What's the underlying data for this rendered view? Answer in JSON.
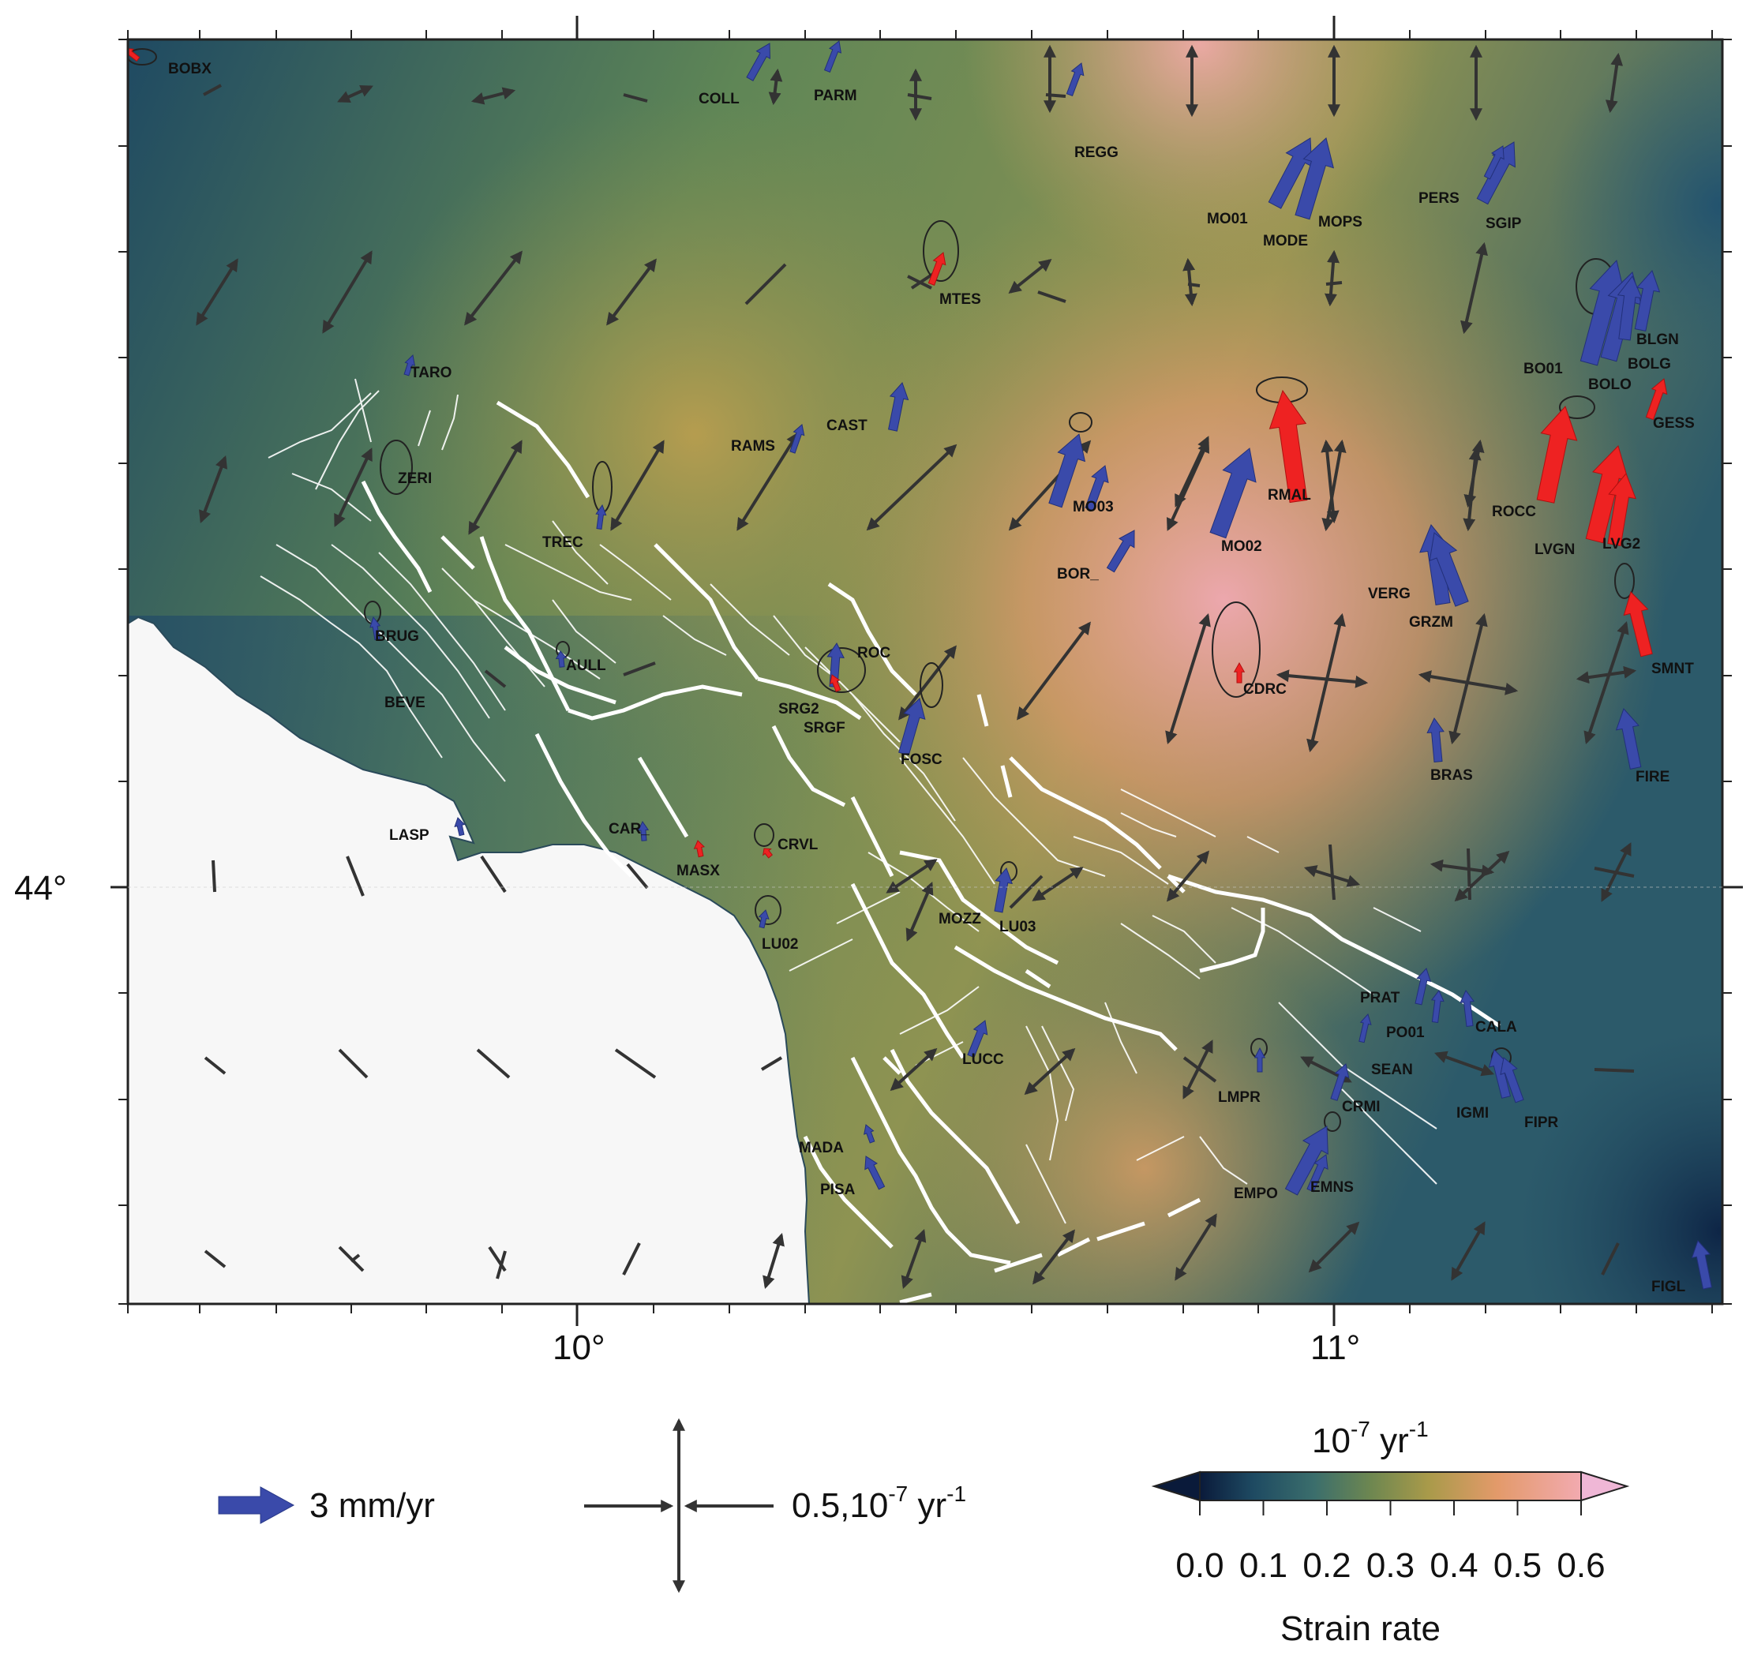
{
  "map": {
    "lat_label": "44°",
    "lon_labels": [
      "10°",
      "11°"
    ],
    "colors": {
      "sea": "#f7f7f7",
      "fault": "#ffffff",
      "gps_arrow": "#3a4aaa",
      "gps_arrow_red": "#ee2222",
      "strain_arrow": "#333333"
    }
  },
  "stations": [
    {
      "label": "BOBX"
    },
    {
      "label": "COLL"
    },
    {
      "label": "PARM"
    },
    {
      "label": "REGG"
    },
    {
      "label": "MO01"
    },
    {
      "label": "MODE"
    },
    {
      "label": "MOPS"
    },
    {
      "label": "PERS"
    },
    {
      "label": "SGIP"
    },
    {
      "label": "MTES"
    },
    {
      "label": "BLGN"
    },
    {
      "label": "BO01"
    },
    {
      "label": "BOLG"
    },
    {
      "label": "BOLO"
    },
    {
      "label": "GESS"
    },
    {
      "label": "TARO"
    },
    {
      "label": "CAST"
    },
    {
      "label": "RAMS"
    },
    {
      "label": "ZERI"
    },
    {
      "label": "RMAL"
    },
    {
      "label": "MO03"
    },
    {
      "label": "ROCC"
    },
    {
      "label": "LVGN"
    },
    {
      "label": "LVG2"
    },
    {
      "label": "TREC"
    },
    {
      "label": "MO02"
    },
    {
      "label": "BOR_"
    },
    {
      "label": "VERG"
    },
    {
      "label": "GRZM"
    },
    {
      "label": "BRUG"
    },
    {
      "label": "ROC"
    },
    {
      "label": "AULL"
    },
    {
      "label": "CDRC"
    },
    {
      "label": "SMNT"
    },
    {
      "label": "BEVE"
    },
    {
      "label": "SRG2"
    },
    {
      "label": "SRGF"
    },
    {
      "label": "FOSC"
    },
    {
      "label": "BRAS"
    },
    {
      "label": "FIRE"
    },
    {
      "label": "LASP"
    },
    {
      "label": "CAR_"
    },
    {
      "label": "CRVL"
    },
    {
      "label": "MASX"
    },
    {
      "label": "MOZZ"
    },
    {
      "label": "LU03"
    },
    {
      "label": "LU02"
    },
    {
      "label": "PRAT"
    },
    {
      "label": "PO01"
    },
    {
      "label": "CALA"
    },
    {
      "label": "LUCC"
    },
    {
      "label": "SEAN"
    },
    {
      "label": "LMPR"
    },
    {
      "label": "CRMI"
    },
    {
      "label": "IGMI"
    },
    {
      "label": "FIPR"
    },
    {
      "label": "MADA"
    },
    {
      "label": "PISA"
    },
    {
      "label": "EMPO"
    },
    {
      "label": "EMNS"
    },
    {
      "label": "FIGL"
    }
  ],
  "legend": {
    "velocity_label": "3 mm/yr",
    "strain_label": "0.5,10",
    "strain_exp": "-7",
    "strain_unit": " yr",
    "strain_unit_exp": "-1",
    "colorbar_unit": "10",
    "colorbar_unit_exp": "-7",
    "colorbar_unit_suffix": " yr",
    "colorbar_unit_suffix_exp": "-1",
    "colorbar_ticks": [
      "0.0",
      "0.1",
      "0.2",
      "0.3",
      "0.4",
      "0.5",
      "0.6"
    ],
    "colorbar_title": "Strain rate",
    "colorbar_stops": [
      "#0a1a3a",
      "#1e4a62",
      "#3b6e6c",
      "#6e8750",
      "#a99a4a",
      "#e39a6a",
      "#f2aab0",
      "#efb7d6"
    ]
  }
}
